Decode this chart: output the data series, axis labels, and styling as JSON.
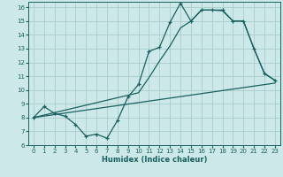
{
  "xlabel": "Humidex (Indice chaleur)",
  "bg_color": "#cce8e8",
  "grid_color": "#aacccc",
  "line_color": "#1a6060",
  "xlim": [
    -0.5,
    23.5
  ],
  "ylim": [
    6,
    16.4
  ],
  "yticks": [
    6,
    7,
    8,
    9,
    10,
    11,
    12,
    13,
    14,
    15,
    16
  ],
  "xticks": [
    0,
    1,
    2,
    3,
    4,
    5,
    6,
    7,
    8,
    9,
    10,
    11,
    12,
    13,
    14,
    15,
    16,
    17,
    18,
    19,
    20,
    21,
    22,
    23
  ],
  "series1_x": [
    0,
    1,
    2,
    3,
    4,
    5,
    6,
    7,
    8,
    9,
    10,
    11,
    12,
    13,
    14,
    15,
    16,
    17,
    18,
    19,
    20,
    21,
    22,
    23
  ],
  "series1_y": [
    8.0,
    8.8,
    8.3,
    8.1,
    7.5,
    6.65,
    6.8,
    6.5,
    7.8,
    9.5,
    10.4,
    12.8,
    13.1,
    14.9,
    16.3,
    15.0,
    15.8,
    15.8,
    15.8,
    15.0,
    15.0,
    13.0,
    11.2,
    10.7
  ],
  "series2_x": [
    0,
    23
  ],
  "series2_y": [
    8.0,
    10.5
  ],
  "series3_x": [
    0,
    10,
    11,
    12,
    13,
    14,
    15,
    16,
    17,
    18,
    19,
    20,
    21,
    22,
    23
  ],
  "series3_y": [
    8.0,
    9.8,
    10.9,
    12.1,
    13.2,
    14.5,
    15.0,
    15.8,
    15.8,
    15.75,
    15.0,
    15.0,
    13.0,
    11.2,
    10.7
  ]
}
